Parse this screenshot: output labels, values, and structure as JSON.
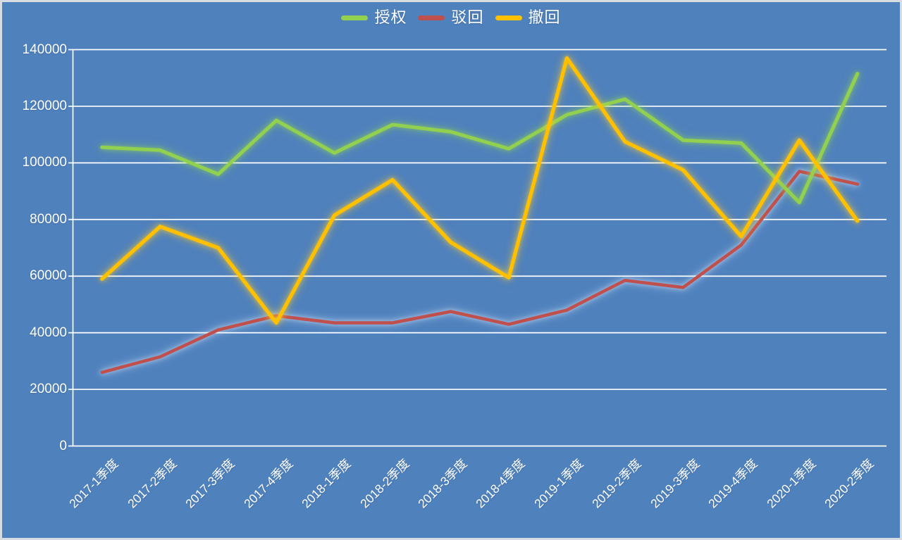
{
  "colors": {
    "background": "#4f81bd",
    "frame_border": "#d7dbe2",
    "gridline": "#ffffff",
    "text": "#ffffff"
  },
  "legend": {
    "position": "top-center",
    "items_note": "legend items mirror chart_data.series order"
  },
  "chart_data": {
    "type": "line",
    "title": "",
    "xlabel": "",
    "ylabel": "",
    "ylim": [
      0,
      140000
    ],
    "y_ticks": [
      0,
      20000,
      40000,
      60000,
      80000,
      100000,
      120000,
      140000
    ],
    "grid": true,
    "legend_position": "top-center",
    "categories": [
      "2017-1季度",
      "2017-2季度",
      "2017-3季度",
      "2017-4季度",
      "2018-1季度",
      "2018-2季度",
      "2018-3季度",
      "2018-4季度",
      "2019-1季度",
      "2019-2季度",
      "2019-3季度",
      "2019-4季度",
      "2020-1季度",
      "2020-2季度"
    ],
    "series": [
      {
        "name": "授权",
        "key": "authorized",
        "color": "#92d050",
        "glow": "rgba(150,215,80,0.55)",
        "z": 2,
        "values": [
          105500,
          104500,
          96000,
          115000,
          103500,
          113500,
          111000,
          105000,
          117000,
          122500,
          108000,
          107000,
          86000,
          131500
        ]
      },
      {
        "name": "驳回",
        "key": "rejected",
        "color": "#c0504d",
        "glow": "rgba(210,228,248,0.6)",
        "z": 1,
        "values": [
          26000,
          31500,
          41000,
          46000,
          43500,
          43500,
          47500,
          43000,
          48000,
          58500,
          56000,
          71000,
          97000,
          92500
        ]
      },
      {
        "name": "撤回",
        "key": "withdrawn",
        "color": "#ffc000",
        "glow": "rgba(255,205,40,0.6)",
        "z": 3,
        "values": [
          59000,
          77500,
          70000,
          43500,
          81500,
          94000,
          72000,
          59500,
          137000,
          107500,
          97500,
          74000,
          108000,
          79500
        ]
      }
    ]
  }
}
